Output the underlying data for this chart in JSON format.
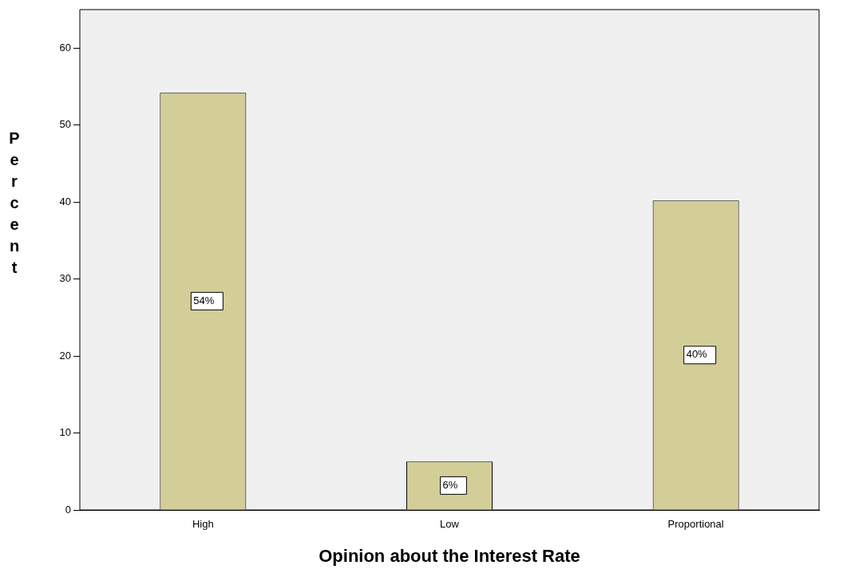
{
  "chart_data": {
    "type": "bar",
    "xlabel": "Opinion about the Interest Rate",
    "ylabel": "Percent",
    "categories": [
      "High",
      "Low",
      "Proportional"
    ],
    "values": [
      54.2,
      6.3,
      40.2
    ],
    "value_labels": [
      "54%",
      "6%",
      "40%"
    ],
    "color": "#d3ce97",
    "ylim": [
      0,
      65
    ],
    "yticks": [
      0,
      10,
      20,
      30,
      40,
      50,
      60
    ]
  }
}
